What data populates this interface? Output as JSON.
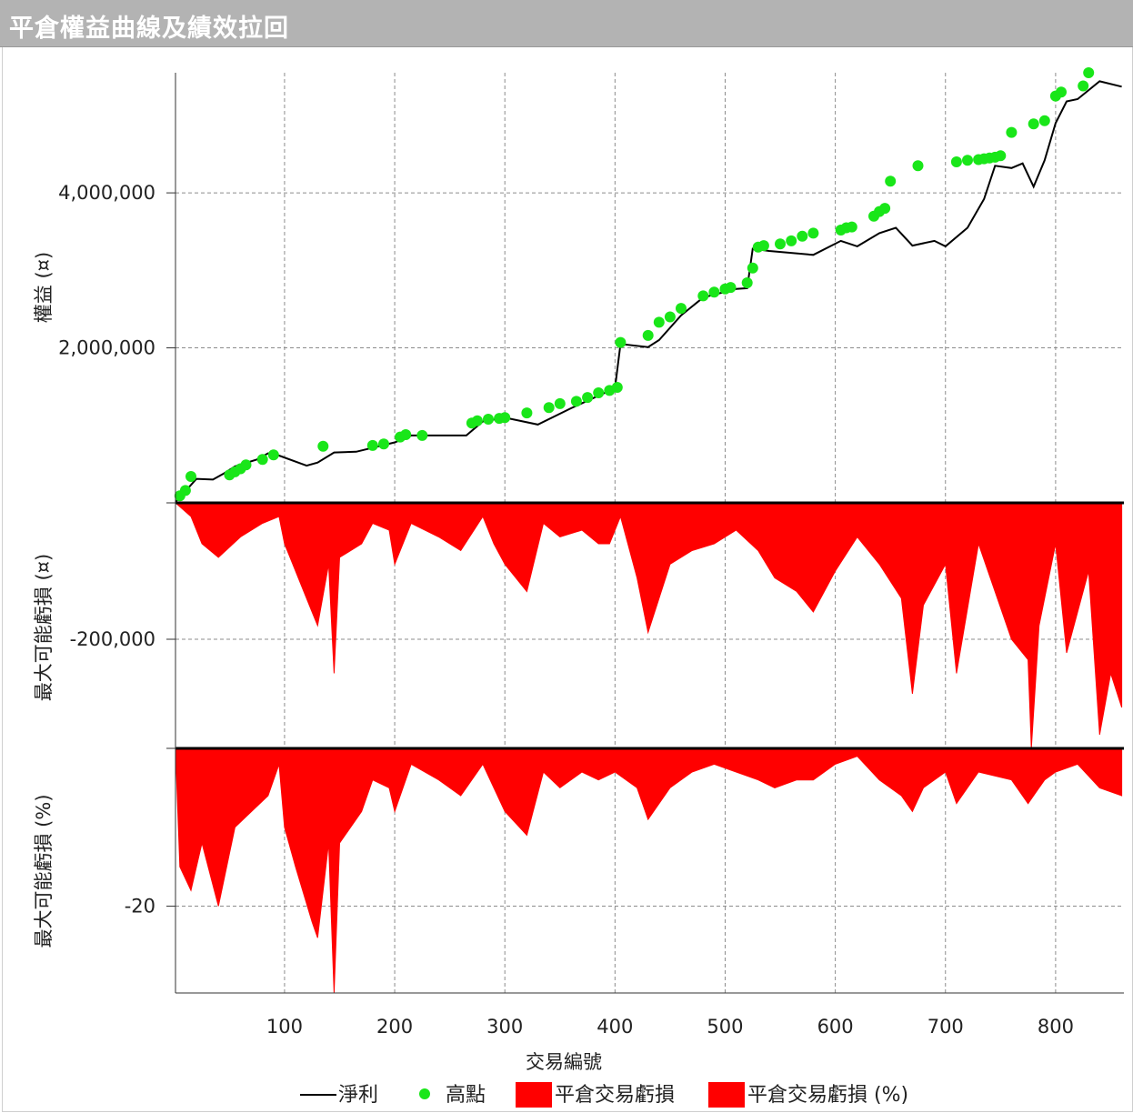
{
  "window": {
    "title": "平倉權益曲線及績效拉回"
  },
  "chart_data": [
    {
      "type": "line",
      "panel": "equity",
      "ylabel": "權益 (¤)",
      "xlabel": "交易編號",
      "xlim": [
        1,
        862
      ],
      "ylim": [
        0,
        5550000
      ],
      "yticks": [
        2000000,
        4000000
      ],
      "ytick_labels": [
        "2,000,000",
        "4,000,000"
      ],
      "grid": true,
      "series": [
        {
          "name": "淨利",
          "color": "#000000",
          "x": [
            1,
            10,
            20,
            35,
            45,
            55,
            75,
            85,
            95,
            120,
            130,
            145,
            165,
            200,
            215,
            265,
            280,
            300,
            330,
            360,
            400,
            405,
            430,
            440,
            460,
            480,
            510,
            520,
            525,
            540,
            580,
            605,
            620,
            640,
            655,
            670,
            690,
            700,
            720,
            735,
            745,
            760,
            770,
            780,
            790,
            800,
            810,
            820,
            840,
            860
          ],
          "y": [
            10000,
            150000,
            310000,
            300000,
            380000,
            470000,
            560000,
            640000,
            610000,
            480000,
            520000,
            650000,
            660000,
            780000,
            870000,
            870000,
            1050000,
            1100000,
            1010000,
            1220000,
            1480000,
            2050000,
            2010000,
            2100000,
            2420000,
            2650000,
            2760000,
            2770000,
            3280000,
            3250000,
            3200000,
            3380000,
            3310000,
            3480000,
            3550000,
            3320000,
            3380000,
            3310000,
            3550000,
            3920000,
            4350000,
            4320000,
            4380000,
            4080000,
            4420000,
            4900000,
            5180000,
            5210000,
            5440000,
            5370000
          ]
        },
        {
          "name": "高點",
          "color": "#19e619",
          "x": [
            5,
            10,
            15,
            50,
            55,
            60,
            65,
            80,
            90,
            135,
            180,
            190,
            205,
            210,
            225,
            270,
            275,
            285,
            295,
            300,
            320,
            340,
            350,
            365,
            375,
            385,
            395,
            402,
            405,
            430,
            440,
            450,
            460,
            480,
            490,
            500,
            505,
            520,
            525,
            530,
            535,
            550,
            560,
            570,
            580,
            605,
            610,
            615,
            635,
            640,
            645,
            650,
            675,
            710,
            720,
            730,
            735,
            740,
            745,
            750,
            760,
            780,
            790,
            800,
            805,
            825,
            830
          ],
          "y": [
            90000,
            160000,
            340000,
            360000,
            400000,
            440000,
            490000,
            560000,
            620000,
            730000,
            740000,
            760000,
            850000,
            880000,
            870000,
            1030000,
            1060000,
            1080000,
            1090000,
            1100000,
            1160000,
            1230000,
            1280000,
            1310000,
            1360000,
            1420000,
            1450000,
            1490000,
            2070000,
            2160000,
            2330000,
            2400000,
            2510000,
            2670000,
            2720000,
            2760000,
            2780000,
            2840000,
            3030000,
            3300000,
            3320000,
            3340000,
            3380000,
            3440000,
            3480000,
            3520000,
            3550000,
            3560000,
            3700000,
            3760000,
            3800000,
            4150000,
            4350000,
            4400000,
            4420000,
            4430000,
            4440000,
            4450000,
            4460000,
            4480000,
            4780000,
            4890000,
            4930000,
            5250000,
            5300000,
            5380000,
            5550000
          ]
        }
      ]
    },
    {
      "type": "area",
      "panel": "drawdown",
      "ylabel": "最大可能虧損 (¤)",
      "xlim": [
        1,
        862
      ],
      "ylim": [
        -360000,
        0
      ],
      "yticks": [
        -200000
      ],
      "ytick_labels": [
        "-200,000"
      ],
      "grid": true,
      "series": [
        {
          "name": "平倉交易虧損",
          "color": "#ff0000",
          "x": [
            1,
            15,
            25,
            40,
            60,
            80,
            95,
            100,
            110,
            125,
            130,
            140,
            145,
            150,
            170,
            180,
            195,
            200,
            215,
            240,
            260,
            280,
            290,
            300,
            320,
            335,
            350,
            370,
            385,
            395,
            405,
            420,
            430,
            450,
            470,
            490,
            510,
            530,
            545,
            565,
            580,
            600,
            620,
            640,
            660,
            670,
            680,
            700,
            710,
            730,
            760,
            775,
            778,
            785,
            800,
            810,
            830,
            840,
            850,
            860
          ],
          "y": [
            0,
            -20000,
            -60000,
            -80000,
            -50000,
            -30000,
            -20000,
            -60000,
            -100000,
            -160000,
            -180000,
            -90000,
            -250000,
            -80000,
            -60000,
            -30000,
            -40000,
            -90000,
            -30000,
            -50000,
            -70000,
            -20000,
            -60000,
            -90000,
            -130000,
            -30000,
            -50000,
            -40000,
            -60000,
            -60000,
            -20000,
            -110000,
            -190000,
            -90000,
            -70000,
            -60000,
            -40000,
            -70000,
            -110000,
            -130000,
            -160000,
            -100000,
            -50000,
            -90000,
            -140000,
            -280000,
            -150000,
            -90000,
            -250000,
            -60000,
            -200000,
            -230000,
            -360000,
            -180000,
            -60000,
            -220000,
            -100000,
            -340000,
            -250000,
            -300000
          ]
        }
      ]
    },
    {
      "type": "area",
      "panel": "drawdown_percent",
      "ylabel": "最大可能虧損 (%)",
      "xlabel": "交易編號",
      "xlim": [
        1,
        862
      ],
      "ylim": [
        -31,
        0
      ],
      "yticks": [
        -20
      ],
      "ytick_labels": [
        "-20"
      ],
      "xticks": [
        100,
        200,
        300,
        400,
        500,
        600,
        700,
        800
      ],
      "xtick_labels": [
        "100",
        "200",
        "300",
        "400",
        "500",
        "600",
        "700",
        "800"
      ],
      "grid": true,
      "series": [
        {
          "name": "平倉交易虧損 (%)",
          "color": "#ff0000",
          "x": [
            1,
            5,
            15,
            25,
            40,
            55,
            70,
            85,
            95,
            100,
            110,
            125,
            130,
            140,
            145,
            150,
            170,
            180,
            195,
            200,
            215,
            240,
            260,
            280,
            290,
            300,
            320,
            335,
            350,
            370,
            385,
            400,
            420,
            430,
            450,
            470,
            490,
            510,
            530,
            545,
            565,
            580,
            600,
            620,
            640,
            660,
            670,
            680,
            700,
            710,
            730,
            760,
            775,
            790,
            800,
            820,
            840,
            860
          ],
          "y": [
            0,
            -15,
            -18,
            -12,
            -20,
            -10,
            -8,
            -6,
            -2,
            -10,
            -15,
            -22,
            -24,
            -12,
            -31,
            -12,
            -8,
            -4,
            -5,
            -8,
            -2,
            -4,
            -6,
            -2,
            -5,
            -8,
            -11,
            -3,
            -5,
            -3,
            -4,
            -3,
            -5,
            -9,
            -5,
            -3,
            -2,
            -3,
            -4,
            -5,
            -4,
            -4,
            -2,
            -1,
            -4,
            -6,
            -8,
            -5,
            -3,
            -7,
            -3,
            -4,
            -7,
            -4,
            -3,
            -2,
            -5,
            -6
          ]
        }
      ]
    }
  ],
  "legend": {
    "items": [
      {
        "label": "淨利",
        "swatch": "line",
        "color": "#000000"
      },
      {
        "label": "高點",
        "swatch": "dot",
        "color": "#19e619"
      },
      {
        "label": "平倉交易虧損",
        "swatch": "box",
        "color": "#ff0000"
      },
      {
        "label": "平倉交易虧損 (%)",
        "swatch": "box",
        "color": "#ff0000"
      }
    ]
  }
}
